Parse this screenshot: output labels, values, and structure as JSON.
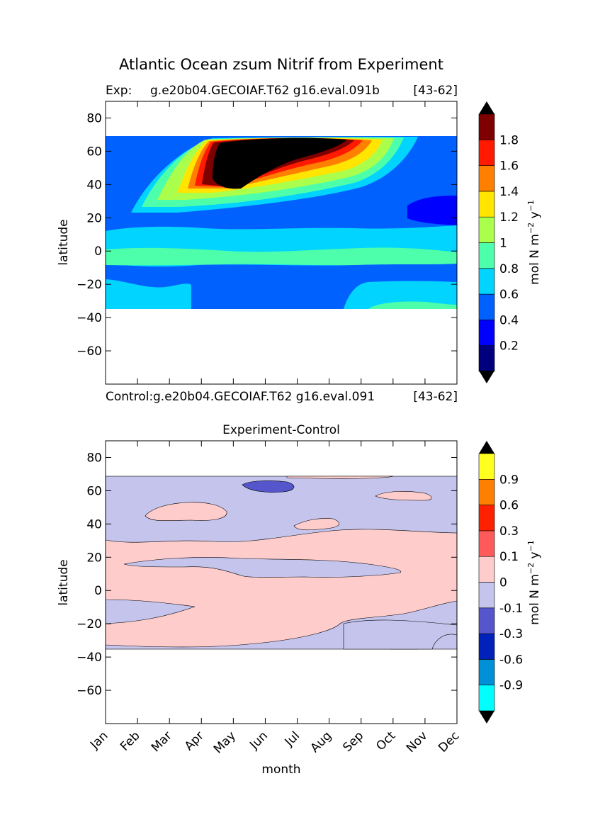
{
  "figure_title": "Atlantic Ocean zsum Nitrif from Experiment",
  "chart_data": [
    {
      "type": "heatmap",
      "panel": "top",
      "title": "",
      "left_label": "Exp:",
      "run_label": "g.e20b04.GECOIAF.T62 g16.eval.091b",
      "year_label": "[43-62]",
      "xlabel": "",
      "ylabel": "latitude",
      "x_months": [
        "Jan",
        "Feb",
        "Mar",
        "Apr",
        "May",
        "Jun",
        "Jul",
        "Aug",
        "Sep",
        "Oct",
        "Nov",
        "Dec"
      ],
      "xlim": [
        0,
        11
      ],
      "ylim": [
        -80,
        90
      ],
      "yticks": [
        80,
        60,
        40,
        20,
        0,
        -20,
        -40,
        -60
      ],
      "data_lat_range": [
        -34,
        69
      ],
      "colorbar": {
        "label": "mol N m",
        "label_sup1": "−2",
        "label_mid": " y",
        "label_sup2": "−1",
        "ticks": [
          "0.2",
          "0.4",
          "0.6",
          "0.8",
          "1",
          "1.2",
          "1.4",
          "1.6",
          "1.8"
        ],
        "colors": [
          "#00007f",
          "#0000ff",
          "#0061ff",
          "#00d4ff",
          "#4dffaa",
          "#aaff4d",
          "#ffe500",
          "#ff7f00",
          "#ff1a00",
          "#7f0000"
        ],
        "under_color": "#000000",
        "over_color": "#000000"
      }
    },
    {
      "type": "heatmap",
      "panel": "bottom",
      "title": "Experiment-Control",
      "left_label": "Control:",
      "run_label": "g.e20b04.GECOIAF.T62 g16.eval.091",
      "year_label": "[43-62]",
      "xlabel": "month",
      "ylabel": "latitude",
      "x_months": [
        "Jan",
        "Feb",
        "Mar",
        "Apr",
        "May",
        "Jun",
        "Jul",
        "Aug",
        "Sep",
        "Oct",
        "Nov",
        "Dec"
      ],
      "xlim": [
        0,
        11
      ],
      "ylim": [
        -80,
        90
      ],
      "yticks": [
        80,
        60,
        40,
        20,
        0,
        -20,
        -40,
        -60
      ],
      "data_lat_range": [
        -34,
        69
      ],
      "colorbar": {
        "label": "mol N m",
        "label_sup1": "−2",
        "label_mid": " y",
        "label_sup2": "−1",
        "ticks": [
          "-0.9",
          "-0.6",
          "-0.3",
          "-0.1",
          "0",
          "0.1",
          "0.3",
          "0.6",
          "0.9"
        ],
        "colors": [
          "#00ffff",
          "#0090d8",
          "#0022bb",
          "#5555cc",
          "#c4c4ec",
          "#ffcccc",
          "#ff5a5a",
          "#ff2000",
          "#ff8000",
          "#ffff20"
        ],
        "under_color": "#000000",
        "over_color": "#000000"
      }
    }
  ]
}
